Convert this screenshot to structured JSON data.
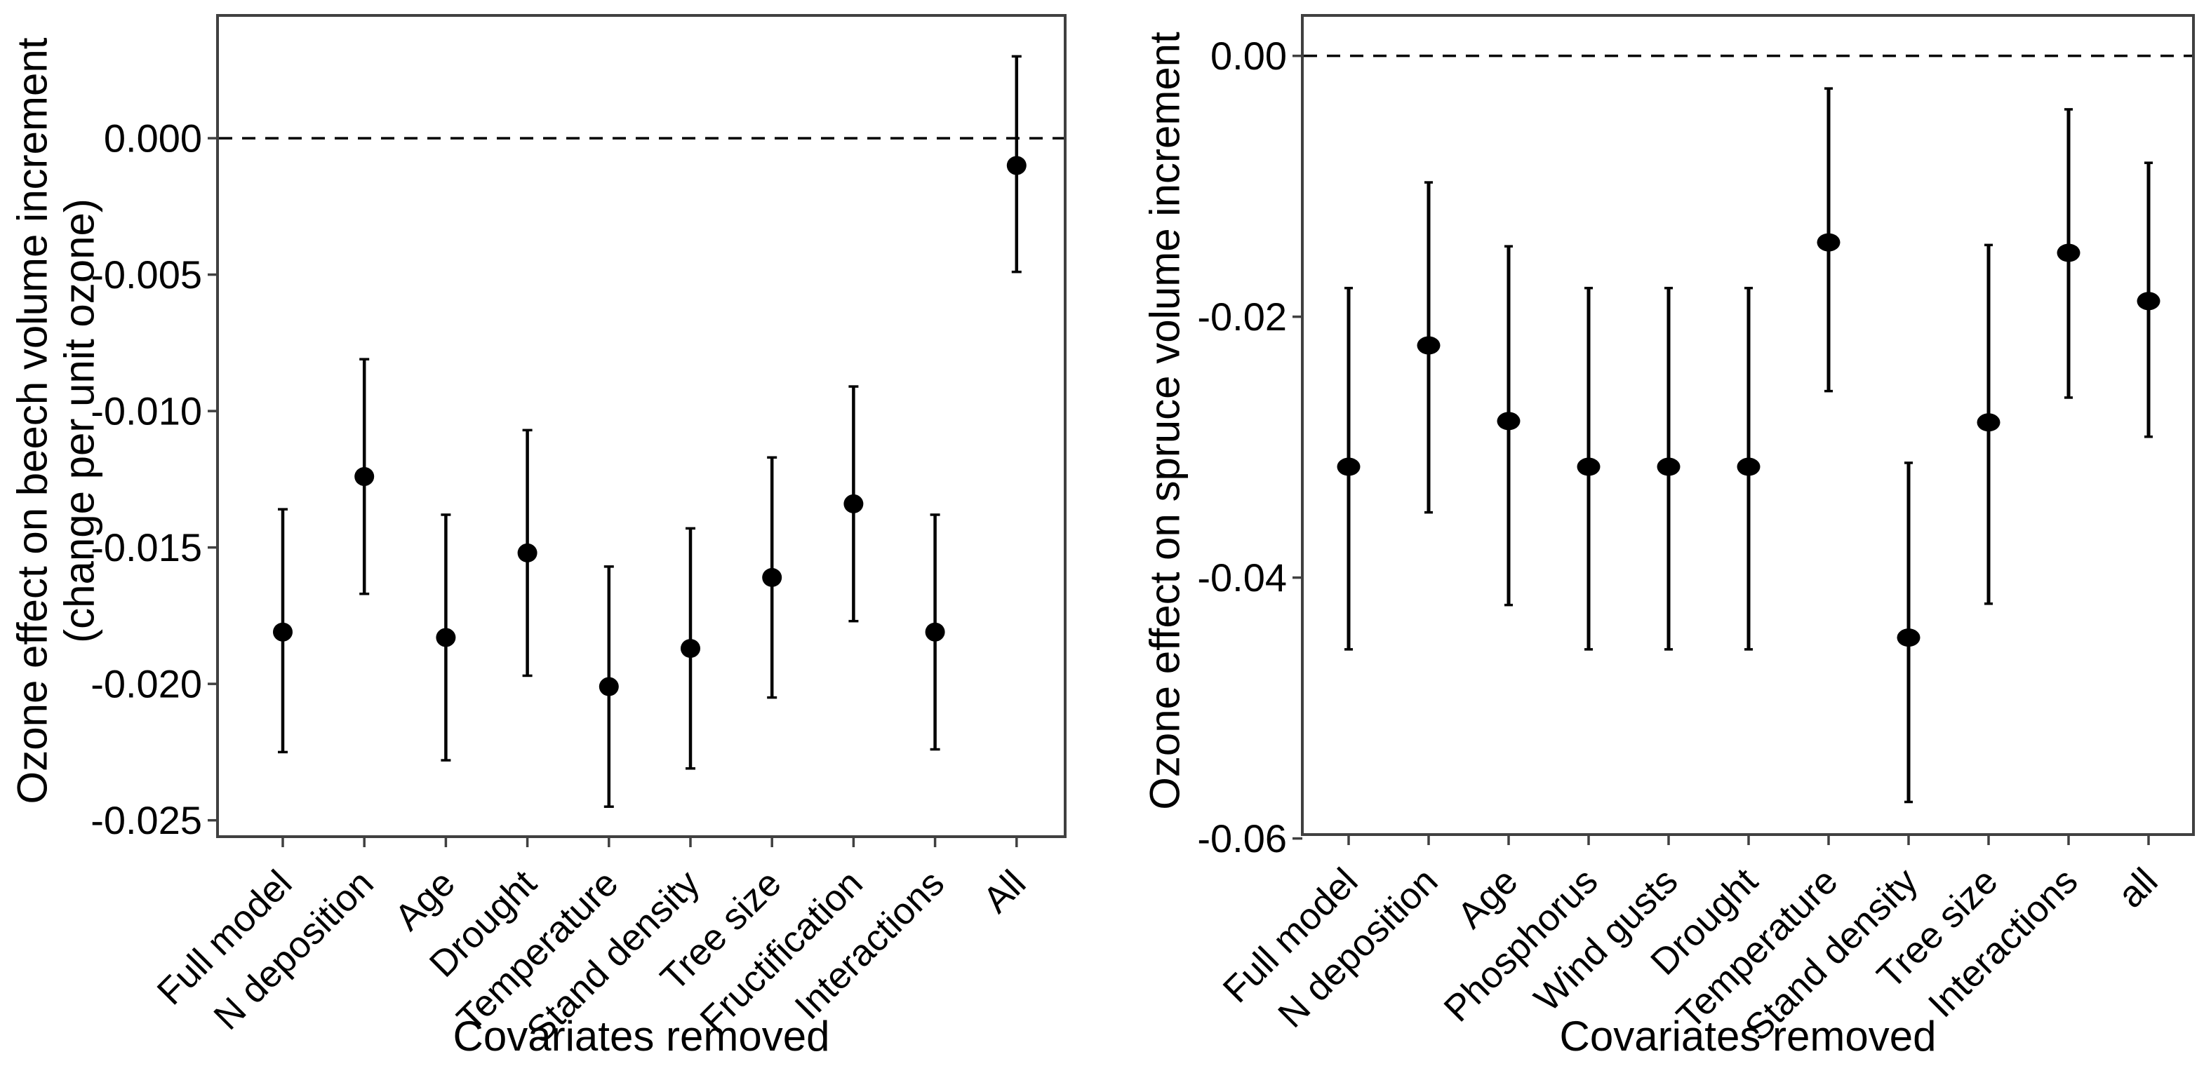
{
  "figure": {
    "background": "#ffffff",
    "axis_color": "#404040",
    "data_color": "#000000",
    "text_color": "#000000"
  },
  "chart_data": [
    {
      "type": "scatter",
      "panel": "left",
      "title": "",
      "xlabel": "Covariates removed",
      "ylabel_lines": [
        "Ozone effect on beech volume increment",
        "(change per unit ozone)"
      ],
      "categories": [
        "Full model",
        "N deposition",
        "Age",
        "Drought",
        "Temperature",
        "Stand density",
        "Tree size",
        "Fructification",
        "Interactions",
        "All"
      ],
      "estimates": [
        -0.0181,
        -0.0124,
        -0.0183,
        -0.0152,
        -0.0201,
        -0.0187,
        -0.0161,
        -0.0134,
        -0.0181,
        -0.001
      ],
      "intervals": {
        "lower": [
          -0.0225,
          -0.0167,
          -0.0228,
          -0.0197,
          -0.0245,
          -0.0231,
          -0.0205,
          -0.0177,
          -0.0224,
          -0.0049
        ],
        "upper": [
          -0.0136,
          -0.0081,
          -0.0138,
          -0.0107,
          -0.0157,
          -0.0143,
          -0.0117,
          -0.0091,
          -0.0138,
          0.003
        ]
      },
      "yticks": [
        0,
        -0.005,
        -0.01,
        -0.015,
        -0.02,
        -0.025
      ],
      "ytick_labels": [
        "0.000",
        "-0.005",
        "-0.010",
        "-0.015",
        "-0.020",
        "-0.025"
      ],
      "ylim": [
        -0.0256,
        0.0045
      ],
      "reference_line_y": 0,
      "grid": false,
      "legend": "none",
      "x_label_rotation_deg": 45,
      "marker": "filled-circle",
      "error_bar_style": "vertical-whisker"
    },
    {
      "type": "scatter",
      "panel": "right",
      "title": "",
      "xlabel": "Covariates removed",
      "ylabel_lines": [
        "Ozone effect on spruce volume increment"
      ],
      "categories": [
        "Full model",
        "N deposition",
        "Age",
        "Phosphorus",
        "Wind gusts",
        "Drought",
        "Temperature",
        "Stand density",
        "Tree size",
        "Interactions",
        "all"
      ],
      "estimates": [
        -0.0315,
        -0.0222,
        -0.028,
        -0.0315,
        -0.0315,
        -0.0315,
        -0.0143,
        -0.0446,
        -0.0281,
        -0.0151,
        -0.0188
      ],
      "intervals": {
        "lower": [
          -0.0455,
          -0.035,
          -0.0421,
          -0.0455,
          -0.0455,
          -0.0455,
          -0.0257,
          -0.0572,
          -0.042,
          -0.0262,
          -0.0292
        ],
        "upper": [
          -0.0178,
          -0.0097,
          -0.0146,
          -0.0178,
          -0.0178,
          -0.0178,
          -0.0025,
          -0.0312,
          -0.0145,
          -0.0041,
          -0.0082
        ]
      },
      "yticks": [
        0,
        -0.02,
        -0.04,
        -0.06
      ],
      "ytick_labels": [
        "0.00",
        "-0.02",
        "-0.04",
        "-0.06"
      ],
      "ylim": [
        -0.0597,
        0.0031
      ],
      "reference_line_y": 0,
      "grid": false,
      "legend": "none",
      "x_label_rotation_deg": 45,
      "marker": "filled-circle",
      "error_bar_style": "vertical-whisker"
    }
  ]
}
